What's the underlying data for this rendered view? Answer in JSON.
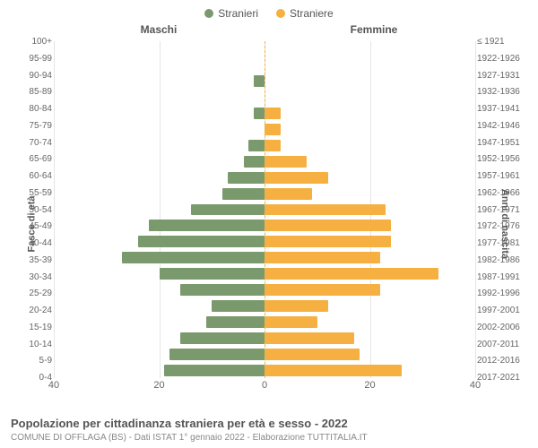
{
  "chart": {
    "type": "population-pyramid",
    "legend": [
      {
        "label": "Stranieri",
        "color": "#7a9a6d"
      },
      {
        "label": "Straniere",
        "color": "#f5b041"
      }
    ],
    "column_titles": {
      "left": "Maschi",
      "right": "Femmine"
    },
    "y_axis_left_title": "Fasce di età",
    "y_axis_right_title": "Anni di nascita",
    "x_axis": {
      "max": 40,
      "ticks_left": [
        40,
        20,
        0
      ],
      "ticks_right": [
        20,
        40
      ],
      "grid_color": "#e5e5e5"
    },
    "bar_colors": {
      "male": "#7a9a6d",
      "female": "#f5b041"
    },
    "background_color": "#ffffff",
    "rows": [
      {
        "age": "100+",
        "birth": "≤ 1921",
        "m": 0,
        "f": 0
      },
      {
        "age": "95-99",
        "birth": "1922-1926",
        "m": 0,
        "f": 0
      },
      {
        "age": "90-94",
        "birth": "1927-1931",
        "m": 2,
        "f": 0
      },
      {
        "age": "85-89",
        "birth": "1932-1936",
        "m": 0,
        "f": 0
      },
      {
        "age": "80-84",
        "birth": "1937-1941",
        "m": 2,
        "f": 3
      },
      {
        "age": "75-79",
        "birth": "1942-1946",
        "m": 0,
        "f": 3
      },
      {
        "age": "70-74",
        "birth": "1947-1951",
        "m": 3,
        "f": 3
      },
      {
        "age": "65-69",
        "birth": "1952-1956",
        "m": 4,
        "f": 8
      },
      {
        "age": "60-64",
        "birth": "1957-1961",
        "m": 7,
        "f": 12
      },
      {
        "age": "55-59",
        "birth": "1962-1966",
        "m": 8,
        "f": 9
      },
      {
        "age": "50-54",
        "birth": "1967-1971",
        "m": 14,
        "f": 23
      },
      {
        "age": "45-49",
        "birth": "1972-1976",
        "m": 22,
        "f": 24
      },
      {
        "age": "40-44",
        "birth": "1977-1981",
        "m": 24,
        "f": 24
      },
      {
        "age": "35-39",
        "birth": "1982-1986",
        "m": 27,
        "f": 22
      },
      {
        "age": "30-34",
        "birth": "1987-1991",
        "m": 20,
        "f": 33
      },
      {
        "age": "25-29",
        "birth": "1992-1996",
        "m": 16,
        "f": 22
      },
      {
        "age": "20-24",
        "birth": "1997-2001",
        "m": 10,
        "f": 12
      },
      {
        "age": "15-19",
        "birth": "2002-2006",
        "m": 11,
        "f": 10
      },
      {
        "age": "10-14",
        "birth": "2007-2011",
        "m": 16,
        "f": 17
      },
      {
        "age": "5-9",
        "birth": "2012-2016",
        "m": 18,
        "f": 18
      },
      {
        "age": "0-4",
        "birth": "2017-2021",
        "m": 19,
        "f": 26
      }
    ],
    "label_fontsize": 10,
    "title_fontsize": 12
  },
  "footer": {
    "title": "Popolazione per cittadinanza straniera per età e sesso - 2022",
    "subtitle": "COMUNE DI OFFLAGA (BS) - Dati ISTAT 1° gennaio 2022 - Elaborazione TUTTITALIA.IT"
  }
}
